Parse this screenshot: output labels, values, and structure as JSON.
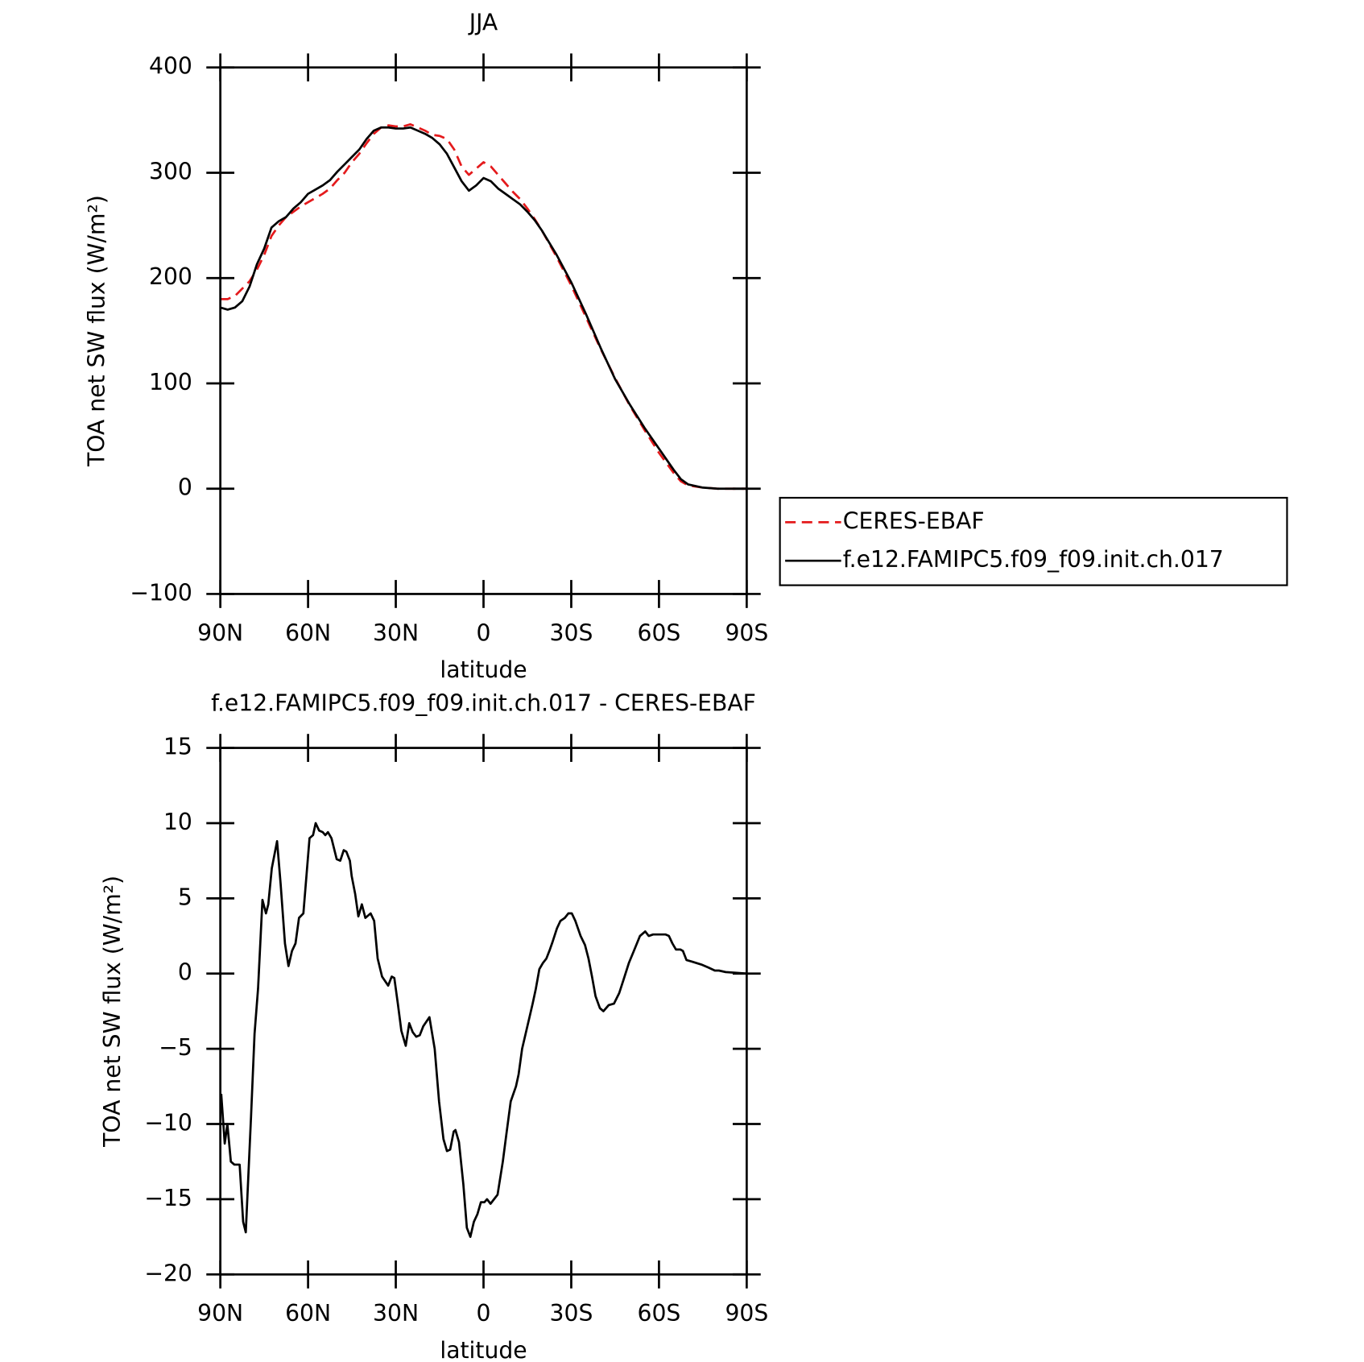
{
  "chart_data": [
    {
      "type": "line",
      "title": "JJA",
      "xlabel": "latitude",
      "ylabel": "TOA net SW flux (W/m²)",
      "xlim": [
        90,
        -90
      ],
      "xticks": [
        {
          "value": 90,
          "label": "90N"
        },
        {
          "value": 60,
          "label": "60N"
        },
        {
          "value": 30,
          "label": "30N"
        },
        0,
        {
          "value": -30,
          "label": "30S"
        },
        {
          "value": -60,
          "label": "60S"
        },
        {
          "value": -90,
          "label": "90S"
        }
      ],
      "ylim": [
        -100,
        400
      ],
      "yticks": [
        {
          "value": -100,
          "label": "−100"
        },
        0,
        100,
        200,
        300,
        400
      ],
      "legend": "right",
      "x": [
        90,
        87.5,
        85,
        82.5,
        80,
        77.5,
        75,
        72.5,
        70,
        67.5,
        65,
        62.5,
        60,
        57.5,
        55,
        52.5,
        50,
        47.5,
        45,
        42.5,
        40,
        37.5,
        35,
        32.5,
        30,
        27.5,
        25,
        22.5,
        20,
        17.5,
        15,
        12.5,
        10,
        7.5,
        5,
        2.5,
        0,
        -2.5,
        -5,
        -7.5,
        -10,
        -12.5,
        -15,
        -17.5,
        -20,
        -25,
        -30,
        -35,
        -40,
        -45,
        -50,
        -55,
        -60,
        -65,
        -67.5,
        -70,
        -75,
        -80,
        -85,
        -90
      ],
      "series": [
        {
          "name": "CERES-EBAF",
          "color": "#e41a1c",
          "line_style": "dashed",
          "values": [
            180,
            180,
            183,
            190,
            197,
            208,
            222,
            240,
            250,
            258,
            263,
            268,
            272,
            276,
            280,
            285,
            293,
            300,
            310,
            318,
            328,
            337,
            343,
            345,
            344,
            344,
            346,
            343,
            340,
            336,
            335,
            332,
            322,
            306,
            298,
            304,
            310,
            306,
            298,
            290,
            282,
            275,
            266,
            256,
            245,
            220,
            193,
            163,
            133,
            105,
            79,
            56,
            34,
            15,
            7,
            3,
            1,
            0,
            0,
            0
          ]
        },
        {
          "name": "f.e12.FAMIPC5.f09_f09.init.ch.017",
          "color": "#000000",
          "line_style": "solid",
          "values": [
            172,
            170,
            172,
            178,
            192,
            213,
            228,
            248,
            254,
            258,
            266,
            272,
            280,
            284,
            288,
            293,
            301,
            308,
            315,
            322,
            332,
            340,
            343,
            343,
            342,
            342,
            343,
            340,
            337,
            333,
            327,
            318,
            305,
            292,
            283,
            288,
            295,
            292,
            285,
            280,
            275,
            270,
            263,
            255,
            245,
            222,
            196,
            166,
            134,
            104,
            80,
            58,
            38,
            18,
            9,
            4,
            1,
            0,
            0,
            0
          ]
        }
      ]
    },
    {
      "type": "line",
      "title": "f.e12.FAMIPC5.f09_f09.init.ch.017 - CERES-EBAF",
      "xlabel": "latitude",
      "ylabel": "TOA net SW flux (W/m²)",
      "xlim": [
        90,
        -90
      ],
      "xticks": [
        {
          "value": 90,
          "label": "90N"
        },
        {
          "value": 60,
          "label": "60N"
        },
        {
          "value": 30,
          "label": "30N"
        },
        0,
        {
          "value": -30,
          "label": "30S"
        },
        {
          "value": -60,
          "label": "60S"
        },
        {
          "value": -90,
          "label": "90S"
        }
      ],
      "ylim": [
        -20,
        15
      ],
      "yticks": [
        {
          "value": -20,
          "label": "−20"
        },
        {
          "value": -15,
          "label": "−15"
        },
        {
          "value": -10,
          "label": "−10"
        },
        {
          "value": -5,
          "label": "−5"
        },
        0,
        5,
        10,
        15
      ],
      "color": "#000000",
      "x": [
        89.7,
        88.5,
        87.6,
        86.4,
        85.2,
        83.4,
        82.2,
        81.3,
        79.5,
        78.3,
        77.1,
        75.6,
        74.4,
        73.6,
        72.4,
        70.6,
        69.4,
        67.9,
        66.7,
        65.5,
        64.3,
        63.1,
        61.6,
        59.5,
        58.3,
        57.4,
        56.2,
        55.0,
        54.1,
        53.2,
        52.0,
        50.2,
        49.0,
        47.8,
        46.9,
        45.7,
        45.1,
        43.9,
        42.8,
        41.6,
        40.4,
        38.6,
        37.4,
        36.2,
        34.7,
        32.6,
        31.4,
        30.5,
        29.3,
        28.1,
        26.6,
        25.4,
        24.2,
        23.0,
        21.8,
        20.6,
        18.5,
        16.7,
        15.2,
        13.7,
        12.5,
        11.4,
        10.2,
        9.6,
        8.4,
        6.9,
        5.7,
        4.5,
        3.3,
        2.1,
        0.9,
        -0.3,
        -1.2,
        -2.4,
        -3.6,
        -4.8,
        -6.6,
        -7.8,
        -9.3,
        -11.1,
        -12.0,
        -13.2,
        -14.4,
        -15.6,
        -16.8,
        -17.9,
        -19.1,
        -20.3,
        -21.5,
        -22.7,
        -23.6,
        -25.1,
        -26.3,
        -27.8,
        -29.0,
        -30.2,
        -31.4,
        -33.2,
        -34.7,
        -35.9,
        -37.1,
        -38.3,
        -39.8,
        -41.0,
        -42.8,
        -44.6,
        -46.4,
        -47.9,
        -49.7,
        -51.4,
        -53.5,
        -55.3,
        -56.5,
        -58.0,
        -59.5,
        -62.2,
        -63.4,
        -64.6,
        -65.8,
        -67.3,
        -68.2,
        -69.4,
        -71.2,
        -74.5,
        -76.9,
        -79.1,
        -80.5,
        -82.8,
        -90.0
      ],
      "values": [
        -8,
        -11.3,
        -10,
        -12.5,
        -12.7,
        -12.7,
        -16.5,
        -17.2,
        -9.5,
        -4,
        -1,
        4.9,
        4,
        4.6,
        7,
        8.8,
        6,
        2,
        0.5,
        1.5,
        2,
        3.7,
        4,
        9,
        9.2,
        10,
        9.5,
        9.4,
        9.2,
        9.4,
        9,
        7.6,
        7.5,
        8.2,
        8.1,
        7.5,
        6.5,
        5.3,
        3.8,
        4.6,
        3.7,
        4,
        3.5,
        1,
        -0.2,
        -0.8,
        -0.2,
        -0.3,
        -2,
        -3.8,
        -4.8,
        -3.3,
        -3.9,
        -4.2,
        -4.1,
        -3.5,
        -2.9,
        -5,
        -8.5,
        -11,
        -11.8,
        -11.7,
        -10.5,
        -10.4,
        -11.2,
        -14,
        -16.9,
        -17.5,
        -16.5,
        -16,
        -15.2,
        -15.2,
        -15,
        -15.3,
        -15,
        -14.7,
        -12.5,
        -10.7,
        -8.5,
        -7.5,
        -6.7,
        -5,
        -4,
        -3,
        -2,
        -1,
        0.3,
        0.7,
        1,
        1.6,
        2.1,
        3,
        3.5,
        3.7,
        4,
        4,
        3.5,
        2.5,
        1.9,
        1,
        -0.2,
        -1.5,
        -2.3,
        -2.5,
        -2.1,
        -2,
        -1.3,
        -0.4,
        0.7,
        1.5,
        2.5,
        2.8,
        2.5,
        2.6,
        2.6,
        2.6,
        2.5,
        2,
        1.6,
        1.6,
        1.5,
        0.9,
        0.8,
        0.6,
        0.4,
        0.2,
        0.2,
        0.1,
        0
      ]
    }
  ]
}
